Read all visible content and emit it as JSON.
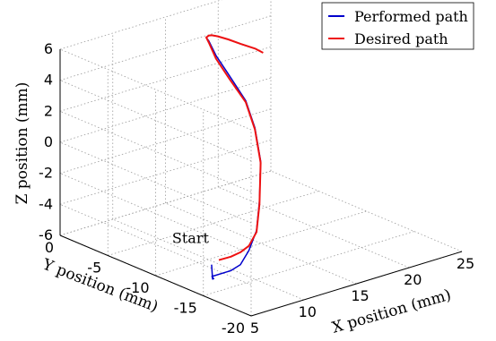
{
  "chart_data": {
    "type": "line",
    "dimensions": 3,
    "title": "",
    "xlabel": "X position (mm)",
    "ylabel": "Y position (mm)",
    "zlabel": "Z position (mm)",
    "xlim": [
      5,
      25
    ],
    "ylim": [
      -20,
      0
    ],
    "zlim": [
      -6,
      6
    ],
    "xticks": [
      5,
      10,
      15,
      20,
      25
    ],
    "yticks": [
      0,
      -5,
      -10,
      -15,
      -20
    ],
    "zticks": [
      6,
      4,
      2,
      0,
      -2,
      -4,
      -6
    ],
    "grid": true,
    "legend": {
      "position": "top-right"
    },
    "colors": {
      "performed": "#0000cc",
      "desired": "#ee1111"
    },
    "annotations": [
      {
        "text": "Start",
        "x": 8.5,
        "y": -12.0,
        "z": -4.8
      }
    ],
    "series": [
      {
        "name": "Performed path",
        "x": [
          8.5,
          8.5,
          8.6,
          8.8,
          10.6,
          11.5,
          12.4,
          13.4,
          14.4,
          15.6,
          16.6,
          17.0,
          16.8,
          16.8,
          17.3,
          17.6,
          18.2,
          19.2,
          20.2,
          21.4,
          22.5,
          23.5
        ],
        "y": [
          -12.0,
          -12.1,
          -12.1,
          -11.7,
          -11.7,
          -11.7,
          -11.6,
          -11.3,
          -10.5,
          -9.3,
          -7.6,
          -6.2,
          -4.8,
          -3.3,
          -2.0,
          -1.4,
          -1.0,
          -0.2,
          0.3,
          0.5,
          0.4,
          0.0
        ],
        "z": [
          -5.5,
          -6.4,
          -6.4,
          -6.4,
          -6.4,
          -6.2,
          -5.5,
          -4.5,
          -3.0,
          -1.0,
          0.5,
          1.8,
          3.0,
          4.0,
          4.5,
          4.5,
          4.4,
          4.0,
          3.6,
          3.1,
          2.6,
          2.2
        ]
      },
      {
        "name": "Desired path",
        "x": [
          9.1,
          10.6,
          11.5,
          12.4,
          13.4,
          14.4,
          15.6,
          16.6,
          17.0,
          16.8,
          16.8,
          17.3,
          17.6,
          18.2,
          19.2,
          20.2,
          21.4,
          22.5,
          23.5,
          24.0
        ],
        "y": [
          -12.1,
          -11.7,
          -11.7,
          -11.6,
          -11.3,
          -10.5,
          -9.3,
          -7.6,
          -6.2,
          -4.8,
          -3.3,
          -2.0,
          -1.4,
          -1.0,
          -0.2,
          0.3,
          0.5,
          0.4,
          0.0,
          -0.3
        ],
        "z": [
          -5.3,
          -5.5,
          -5.4,
          -5.2,
          -4.6,
          -3.2,
          -1.1,
          0.4,
          1.7,
          2.8,
          3.8,
          4.4,
          4.5,
          4.4,
          4.0,
          3.6,
          3.1,
          2.6,
          2.2,
          1.9
        ]
      }
    ]
  }
}
